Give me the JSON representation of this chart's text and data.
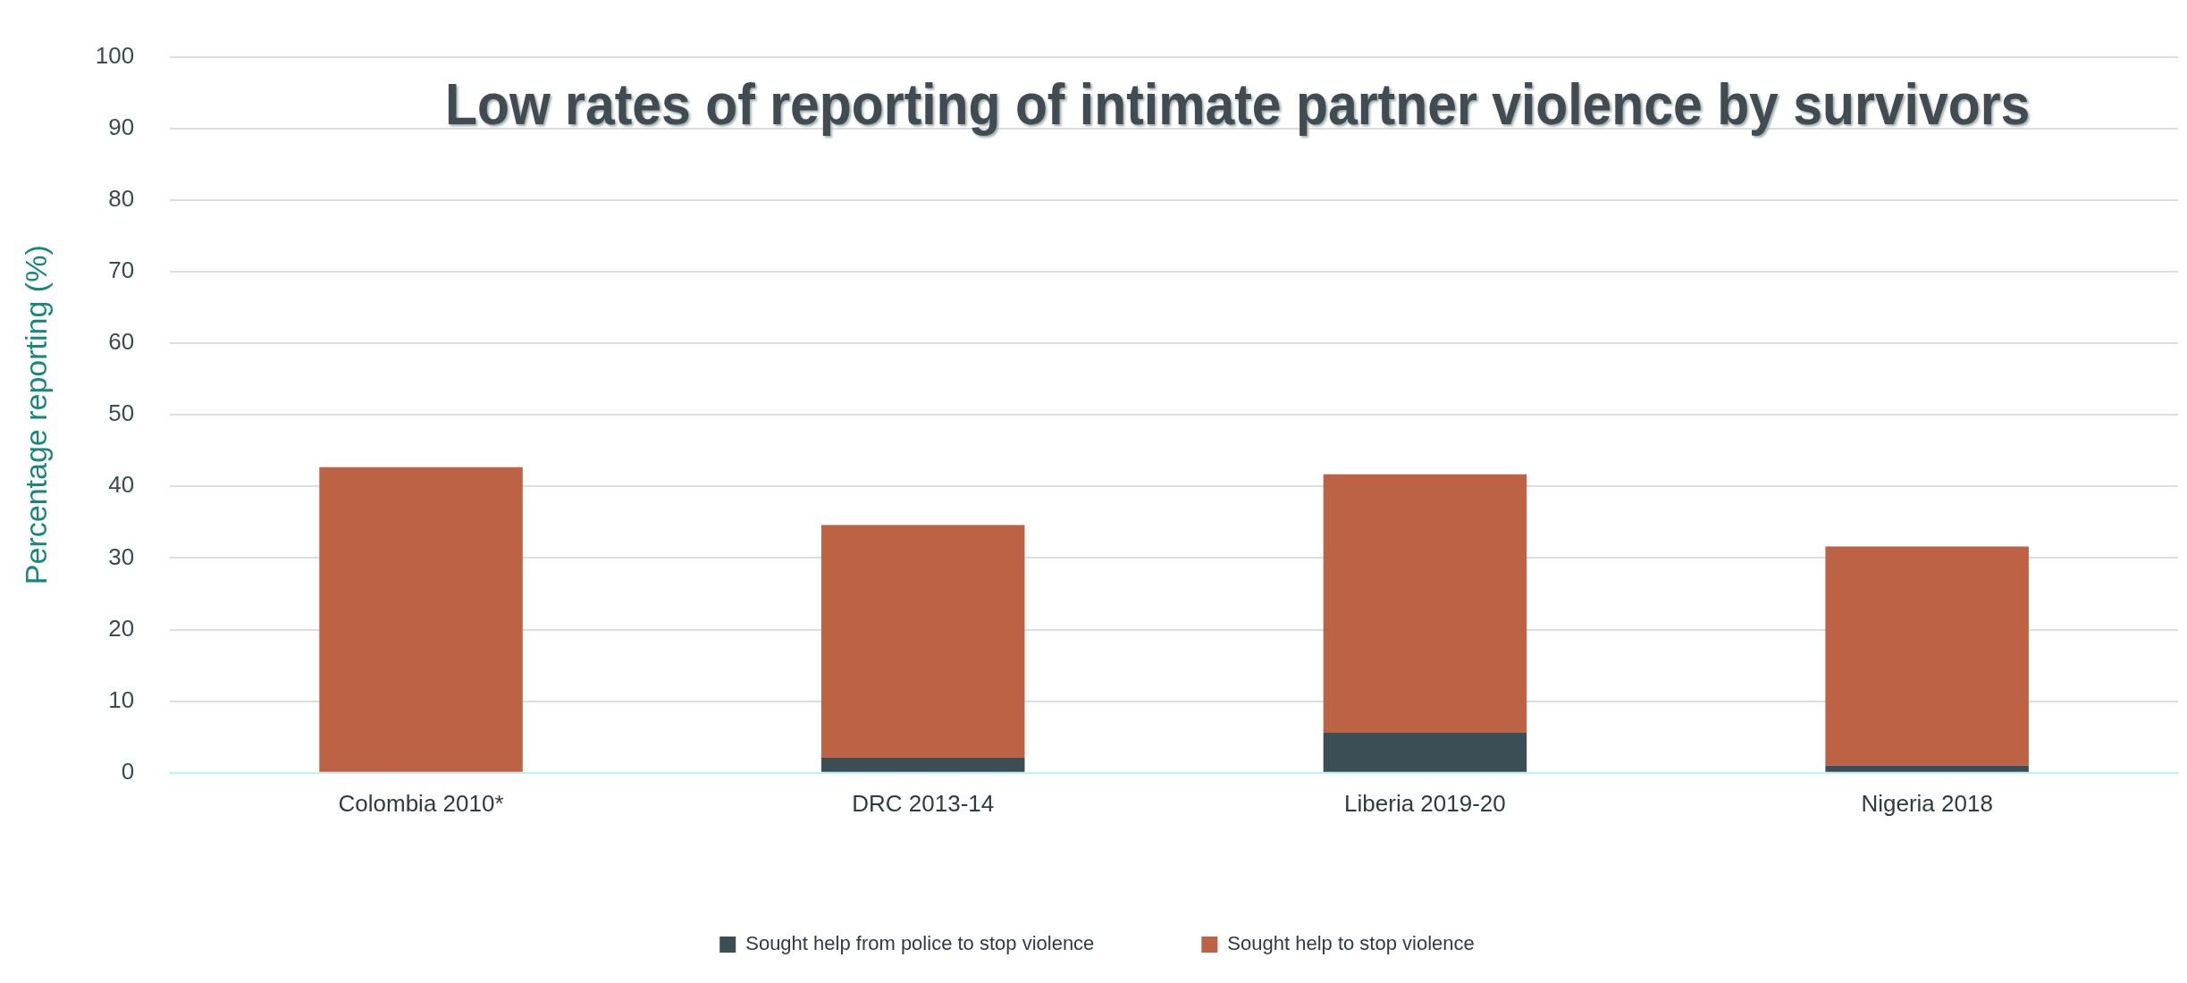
{
  "chart_data": {
    "type": "bar",
    "title": "Low rates of reporting of intimate partner violence by survivors",
    "ylabel": "Percentage reporting (%)",
    "categories": [
      "Colombia 2010*",
      "DRC 2013-14",
      "Liberia 2019-20",
      "Nigeria 2018"
    ],
    "series": [
      {
        "name": "Sought help from police to stop violence",
        "color": "#3b4d55",
        "values": [
          0,
          2.1,
          5.6,
          1.0
        ]
      },
      {
        "name": "Sought help to stop violence",
        "color": "#bd6244",
        "values": [
          42.7,
          32.5,
          36.1,
          30.6
        ]
      }
    ],
    "stacked": true,
    "ylim": [
      0,
      100
    ],
    "yticks": [
      0,
      10,
      20,
      30,
      40,
      50,
      60,
      70,
      80,
      90,
      100
    ],
    "grid": "y",
    "legend": "bottom"
  }
}
